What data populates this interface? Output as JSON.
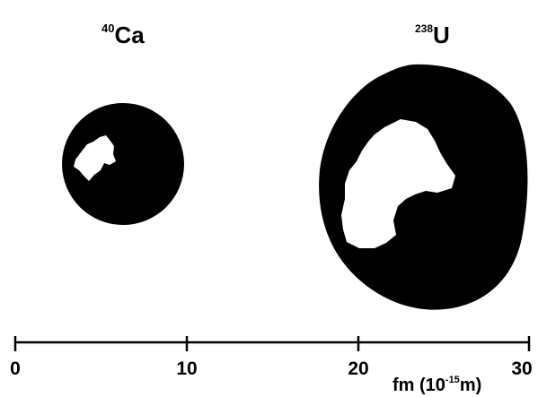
{
  "nuclei": [
    {
      "mass_number": "40",
      "symbol": "Ca"
    },
    {
      "mass_number": "238",
      "symbol": "U"
    }
  ],
  "axis": {
    "ticks": [
      "0",
      "10",
      "20",
      "30"
    ],
    "unit_main": "fm (10",
    "unit_exp": "-15",
    "unit_tail": "m)"
  },
  "colors": {
    "nucleus": "#000000",
    "highlight": "#ffffff"
  }
}
